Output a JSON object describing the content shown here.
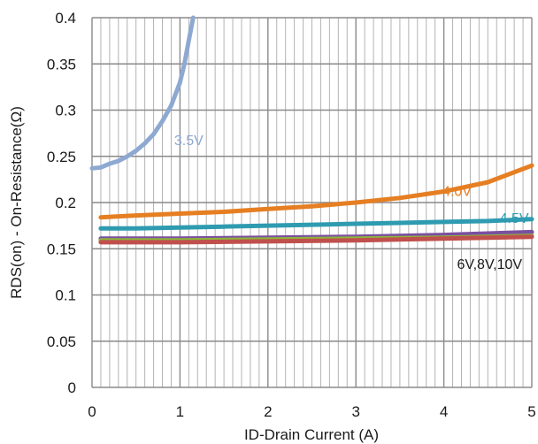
{
  "chart_data": {
    "type": "line",
    "title": "",
    "xlabel": "ID-Drain Current (A)",
    "ylabel": "RDS(on) - On-Resistance(Ω)",
    "xlim": [
      0,
      5
    ],
    "ylim": [
      0,
      0.4
    ],
    "x_ticks": [
      "0",
      "1",
      "2",
      "3",
      "4",
      "5"
    ],
    "y_ticks": [
      "0",
      "0.05",
      "0.1",
      "0.15",
      "0.2",
      "0.25",
      "0.3",
      "0.35",
      "0.4"
    ],
    "grid": true,
    "series": [
      {
        "name": "3.5V",
        "color": "#8ea9d1",
        "x": [
          0.0,
          0.1,
          0.2,
          0.3,
          0.4,
          0.5,
          0.6,
          0.7,
          0.8,
          0.9,
          1.0,
          1.05,
          1.1,
          1.15
        ],
        "y": [
          0.237,
          0.238,
          0.242,
          0.245,
          0.25,
          0.256,
          0.264,
          0.274,
          0.288,
          0.305,
          0.33,
          0.35,
          0.375,
          0.4
        ]
      },
      {
        "name": "4.0V",
        "color": "#e67e22",
        "x": [
          0.1,
          0.5,
          1.0,
          1.5,
          2.0,
          2.5,
          3.0,
          3.5,
          4.0,
          4.5,
          5.0
        ],
        "y": [
          0.184,
          0.186,
          0.188,
          0.19,
          0.193,
          0.196,
          0.2,
          0.205,
          0.212,
          0.222,
          0.24
        ]
      },
      {
        "name": "4.5V",
        "color": "#2e9bb0",
        "x": [
          0.1,
          0.5,
          1.0,
          1.5,
          2.0,
          2.5,
          3.0,
          3.5,
          4.0,
          4.5,
          5.0
        ],
        "y": [
          0.172,
          0.172,
          0.173,
          0.174,
          0.175,
          0.176,
          0.177,
          0.178,
          0.179,
          0.18,
          0.182
        ]
      },
      {
        "name": "",
        "color": "#7a4fa0",
        "x": [
          0.1,
          1.0,
          2.0,
          3.0,
          4.0,
          5.0
        ],
        "y": [
          0.161,
          0.161,
          0.162,
          0.163,
          0.165,
          0.168
        ]
      },
      {
        "name": "",
        "color": "#8db53a",
        "x": [
          0.1,
          1.0,
          2.0,
          3.0,
          4.0,
          5.0
        ],
        "y": [
          0.159,
          0.159,
          0.16,
          0.161,
          0.162,
          0.164
        ]
      },
      {
        "name": "",
        "color": "#c0504d",
        "x": [
          0.1,
          1.0,
          2.0,
          3.0,
          4.0,
          5.0
        ],
        "y": [
          0.157,
          0.157,
          0.158,
          0.159,
          0.161,
          0.163
        ]
      }
    ],
    "annotations": [
      {
        "text": "3.5V",
        "x": 1.1,
        "y": 0.262,
        "color": "#8ea9d1"
      },
      {
        "text": "4.0V",
        "x": 4.15,
        "y": 0.207,
        "color": "#e67e22"
      },
      {
        "text": "4.5V",
        "x": 4.8,
        "y": 0.178,
        "color": "#2e9bb0"
      },
      {
        "text": "6V,8V,10V",
        "x": 4.52,
        "y": 0.128,
        "color": "#1a1a1a"
      }
    ]
  }
}
